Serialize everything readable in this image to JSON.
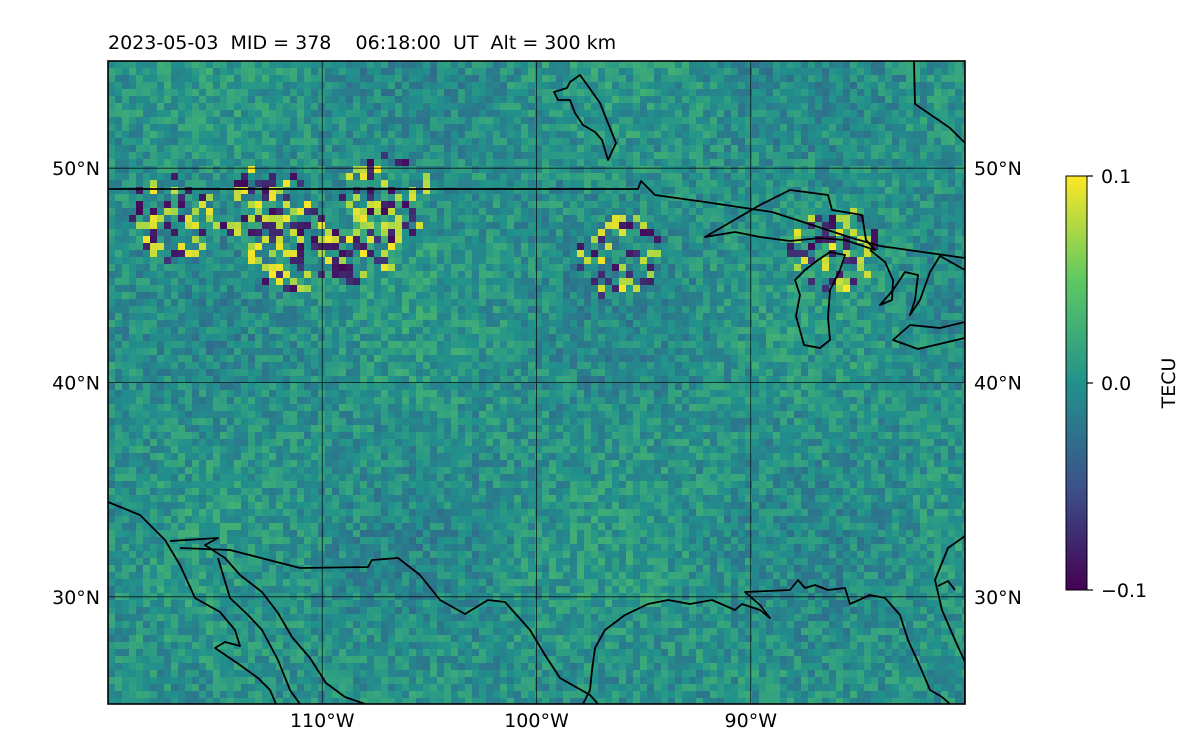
{
  "title": "2023-05-03  MID = 378    06:18:00  UT  Alt = 300 km",
  "map": {
    "lon_range": [
      -120,
      -80
    ],
    "lat_range": [
      25,
      55
    ],
    "lon_ticks": [
      {
        "value": -110,
        "label": "110°W"
      },
      {
        "value": -100,
        "label": "100°W"
      },
      {
        "value": -90,
        "label": "90°W"
      }
    ],
    "lat_ticks": [
      {
        "value": 50,
        "label": "50°N"
      },
      {
        "value": 40,
        "label": "40°N"
      },
      {
        "value": 30,
        "label": "30°N"
      }
    ],
    "gridlines": true,
    "colormap": "viridis",
    "colormap_stops": [
      "#440154",
      "#3b528b",
      "#21918c",
      "#5ec962",
      "#fde725"
    ],
    "background_color": "#2a7f84",
    "coastline_color": "#000000"
  },
  "colorbar": {
    "label": "TECU",
    "min": -0.1,
    "max": 0.1,
    "ticks": [
      {
        "value": 0.1,
        "label": "0.1"
      },
      {
        "value": 0.0,
        "label": "0.0"
      },
      {
        "value": -0.1,
        "label": "−0.1"
      }
    ]
  }
}
